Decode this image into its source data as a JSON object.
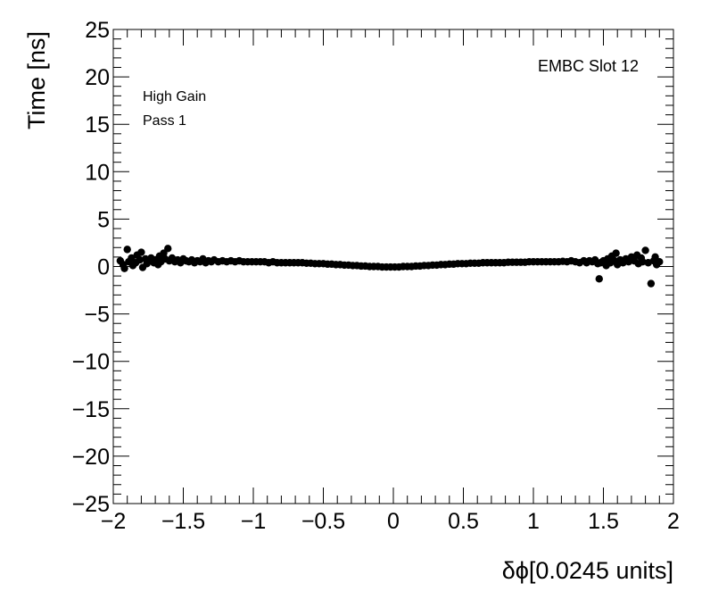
{
  "chart_data": {
    "type": "scatter",
    "title": "",
    "xlabel": "δϕ[0.0245 units]",
    "ylabel": "Time [ns]",
    "xlim": [
      -2,
      2
    ],
    "ylim": [
      -25,
      25
    ],
    "x_ticks": [
      -2,
      -1.5,
      -1,
      -0.5,
      0,
      0.5,
      1,
      1.5,
      2
    ],
    "x_tick_labels": [
      "−2",
      "−1.5",
      "−1",
      "−0.5",
      "0",
      "0.5",
      "1",
      "1.5",
      "2"
    ],
    "y_ticks": [
      25,
      20,
      15,
      10,
      5,
      0,
      -5,
      -10,
      -15,
      -20,
      -25
    ],
    "y_tick_labels": [
      "25",
      "20",
      "15",
      "10",
      "5",
      "0",
      "−5",
      "−10",
      "−15",
      "−20",
      "−25"
    ],
    "annotations": {
      "gain": "High Gain",
      "pass": "Pass 1",
      "slot": "EMBC Slot 12"
    },
    "grid": false,
    "marker_color": "#000000",
    "series": [
      {
        "points": [
          [
            -1.95,
            0.6
          ],
          [
            -1.93,
            0.2
          ],
          [
            -1.92,
            -0.2
          ],
          [
            -1.9,
            1.8
          ],
          [
            -1.89,
            0.5
          ],
          [
            -1.87,
            0.9
          ],
          [
            -1.86,
            0.1
          ],
          [
            -1.84,
            0.4
          ],
          [
            -1.83,
            1.2
          ],
          [
            -1.81,
            0.7
          ],
          [
            -1.8,
            1.5
          ],
          [
            -1.79,
            -0.1
          ],
          [
            -1.77,
            0.8
          ],
          [
            -1.76,
            0.3
          ],
          [
            -1.74,
            0.6
          ],
          [
            -1.73,
            0.9
          ],
          [
            -1.71,
            0.4
          ],
          [
            -1.7,
            0.7
          ],
          [
            -1.68,
            0.2
          ],
          [
            -1.67,
            1.1
          ],
          [
            -1.66,
            0.5
          ],
          [
            -1.64,
            1.4
          ],
          [
            -1.63,
            0.8
          ],
          [
            -1.61,
            1.9
          ],
          [
            -1.6,
            0.6
          ],
          [
            -1.58,
            0.9
          ],
          [
            -1.56,
            0.5
          ],
          [
            -1.54,
            0.7
          ],
          [
            -1.52,
            0.4
          ],
          [
            -1.5,
            0.8
          ],
          [
            -1.48,
            0.6
          ],
          [
            -1.46,
            0.5
          ],
          [
            -1.44,
            0.7
          ],
          [
            -1.42,
            0.4
          ],
          [
            -1.4,
            0.6
          ],
          [
            -1.38,
            0.5
          ],
          [
            -1.36,
            0.8
          ],
          [
            -1.34,
            0.4
          ],
          [
            -1.32,
            0.6
          ],
          [
            -1.3,
            0.5
          ],
          [
            -1.28,
            0.7
          ],
          [
            -1.25,
            0.5
          ],
          [
            -1.22,
            0.6
          ],
          [
            -1.19,
            0.5
          ],
          [
            -1.16,
            0.6
          ],
          [
            -1.13,
            0.5
          ],
          [
            -1.1,
            0.6
          ],
          [
            -1.07,
            0.5
          ],
          [
            -1.04,
            0.5
          ],
          [
            -1.01,
            0.5
          ],
          [
            -0.98,
            0.5
          ],
          [
            -0.95,
            0.5
          ],
          [
            -0.92,
            0.5
          ],
          [
            -0.89,
            0.4
          ],
          [
            -0.86,
            0.5
          ],
          [
            -0.83,
            0.4
          ],
          [
            -0.8,
            0.4
          ],
          [
            -0.77,
            0.4
          ],
          [
            -0.74,
            0.4
          ],
          [
            -0.71,
            0.4
          ],
          [
            -0.68,
            0.4
          ],
          [
            -0.65,
            0.4
          ],
          [
            -0.62,
            0.35
          ],
          [
            -0.59,
            0.35
          ],
          [
            -0.56,
            0.3
          ],
          [
            -0.53,
            0.3
          ],
          [
            -0.5,
            0.3
          ],
          [
            -0.47,
            0.25
          ],
          [
            -0.44,
            0.25
          ],
          [
            -0.41,
            0.2
          ],
          [
            -0.38,
            0.2
          ],
          [
            -0.35,
            0.15
          ],
          [
            -0.32,
            0.15
          ],
          [
            -0.29,
            0.1
          ],
          [
            -0.26,
            0.1
          ],
          [
            -0.23,
            0.05
          ],
          [
            -0.2,
            0.05
          ],
          [
            -0.17,
            0.0
          ],
          [
            -0.14,
            0.0
          ],
          [
            -0.11,
            0.0
          ],
          [
            -0.08,
            -0.05
          ],
          [
            -0.05,
            -0.05
          ],
          [
            -0.02,
            -0.05
          ],
          [
            0.01,
            -0.05
          ],
          [
            0.04,
            -0.05
          ],
          [
            0.07,
            0.0
          ],
          [
            0.1,
            0.0
          ],
          [
            0.13,
            0.0
          ],
          [
            0.16,
            0.05
          ],
          [
            0.19,
            0.05
          ],
          [
            0.22,
            0.1
          ],
          [
            0.25,
            0.1
          ],
          [
            0.28,
            0.15
          ],
          [
            0.31,
            0.15
          ],
          [
            0.34,
            0.2
          ],
          [
            0.37,
            0.2
          ],
          [
            0.4,
            0.25
          ],
          [
            0.43,
            0.25
          ],
          [
            0.46,
            0.3
          ],
          [
            0.49,
            0.3
          ],
          [
            0.52,
            0.3
          ],
          [
            0.55,
            0.35
          ],
          [
            0.58,
            0.35
          ],
          [
            0.61,
            0.35
          ],
          [
            0.64,
            0.4
          ],
          [
            0.67,
            0.4
          ],
          [
            0.7,
            0.4
          ],
          [
            0.73,
            0.4
          ],
          [
            0.76,
            0.4
          ],
          [
            0.79,
            0.4
          ],
          [
            0.82,
            0.45
          ],
          [
            0.85,
            0.45
          ],
          [
            0.88,
            0.45
          ],
          [
            0.91,
            0.45
          ],
          [
            0.94,
            0.45
          ],
          [
            0.97,
            0.5
          ],
          [
            1.0,
            0.5
          ],
          [
            1.03,
            0.5
          ],
          [
            1.06,
            0.5
          ],
          [
            1.09,
            0.5
          ],
          [
            1.12,
            0.5
          ],
          [
            1.15,
            0.5
          ],
          [
            1.18,
            0.5
          ],
          [
            1.21,
            0.55
          ],
          [
            1.24,
            0.5
          ],
          [
            1.27,
            0.6
          ],
          [
            1.3,
            0.5
          ],
          [
            1.33,
            0.4
          ],
          [
            1.36,
            0.6
          ],
          [
            1.38,
            0.4
          ],
          [
            1.4,
            0.6
          ],
          [
            1.42,
            0.5
          ],
          [
            1.44,
            0.7
          ],
          [
            1.46,
            0.3
          ],
          [
            1.47,
            -1.3
          ],
          [
            1.48,
            0.4
          ],
          [
            1.5,
            0.6
          ],
          [
            1.52,
            0.1
          ],
          [
            1.53,
            0.8
          ],
          [
            1.55,
            0.4
          ],
          [
            1.56,
            1.1
          ],
          [
            1.58,
            0.6
          ],
          [
            1.59,
            1.4
          ],
          [
            1.6,
            0.2
          ],
          [
            1.62,
            0.7
          ],
          [
            1.64,
            0.4
          ],
          [
            1.66,
            0.8
          ],
          [
            1.68,
            0.5
          ],
          [
            1.7,
            1.0
          ],
          [
            1.72,
            0.6
          ],
          [
            1.74,
            1.2
          ],
          [
            1.75,
            0.3
          ],
          [
            1.77,
            0.9
          ],
          [
            1.78,
            0.5
          ],
          [
            1.8,
            1.7
          ],
          [
            1.82,
            0.4
          ],
          [
            1.84,
            -1.8
          ],
          [
            1.86,
            0.6
          ],
          [
            1.87,
            1.0
          ],
          [
            1.88,
            0.2
          ],
          [
            1.9,
            0.5
          ]
        ]
      }
    ]
  }
}
